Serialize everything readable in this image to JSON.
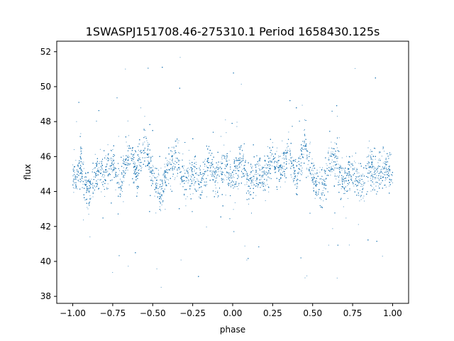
{
  "chart_data": {
    "type": "scatter",
    "title": "1SWASPJ151708.46-275310.1 Period 1658430.125s",
    "xlabel": "phase",
    "ylabel": "flux",
    "xlim": [
      -1.1,
      1.1
    ],
    "ylim": [
      37.6,
      52.6
    ],
    "x_ticks": [
      -1.0,
      -0.75,
      -0.5,
      -0.25,
      0.0,
      0.25,
      0.5,
      0.75,
      1.0
    ],
    "x_tick_labels": [
      "−1.00",
      "−0.75",
      "−0.50",
      "−0.25",
      "0.00",
      "0.25",
      "0.50",
      "0.75",
      "1.00"
    ],
    "y_ticks": [
      38,
      40,
      42,
      44,
      46,
      48,
      50,
      52
    ],
    "y_tick_labels": [
      "38",
      "40",
      "42",
      "44",
      "46",
      "48",
      "50",
      "52"
    ],
    "grid": false,
    "point_color": "#1f77b4",
    "series": [
      {
        "x_range": [
          -1.0,
          1.0
        ],
        "core_center": 45.0,
        "core_band": [
          43.5,
          46.8
        ],
        "scatter_range": [
          38.2,
          51.9
        ],
        "points": [
          [
            -0.98,
            44.2
          ],
          [
            -0.95,
            46.1
          ],
          [
            -0.9,
            42.7
          ],
          [
            -0.85,
            45.5
          ],
          [
            -0.8,
            44.9
          ],
          [
            -0.75,
            46.4
          ],
          [
            -0.7,
            43.8
          ],
          [
            -0.65,
            47.2
          ],
          [
            -0.6,
            45.1
          ],
          [
            -0.55,
            48.3
          ],
          [
            -0.5,
            44.6
          ],
          [
            -0.45,
            42.9
          ],
          [
            -0.4,
            45.7
          ],
          [
            -0.35,
            46.9
          ],
          [
            -0.3,
            44.1
          ],
          [
            -0.25,
            45.3
          ],
          [
            -0.2,
            43.6
          ],
          [
            -0.15,
            46.2
          ],
          [
            -0.1,
            44.8
          ],
          [
            -0.05,
            45.9
          ],
          [
            0.0,
            44.4
          ],
          [
            0.05,
            46.6
          ],
          [
            0.1,
            43.9
          ],
          [
            0.15,
            45.2
          ],
          [
            0.2,
            44.7
          ],
          [
            0.25,
            46.8
          ],
          [
            0.3,
            45.4
          ],
          [
            0.35,
            47.4
          ],
          [
            0.4,
            44.3
          ],
          [
            0.45,
            48.1
          ],
          [
            0.5,
            45.0
          ],
          [
            0.55,
            43.1
          ],
          [
            0.6,
            45.8
          ],
          [
            0.65,
            46.7
          ],
          [
            0.7,
            44.2
          ],
          [
            0.75,
            45.6
          ],
          [
            0.8,
            43.7
          ],
          [
            0.85,
            46.0
          ],
          [
            0.9,
            44.9
          ],
          [
            0.95,
            45.7
          ],
          [
            1.0,
            44.5
          ]
        ]
      }
    ]
  }
}
